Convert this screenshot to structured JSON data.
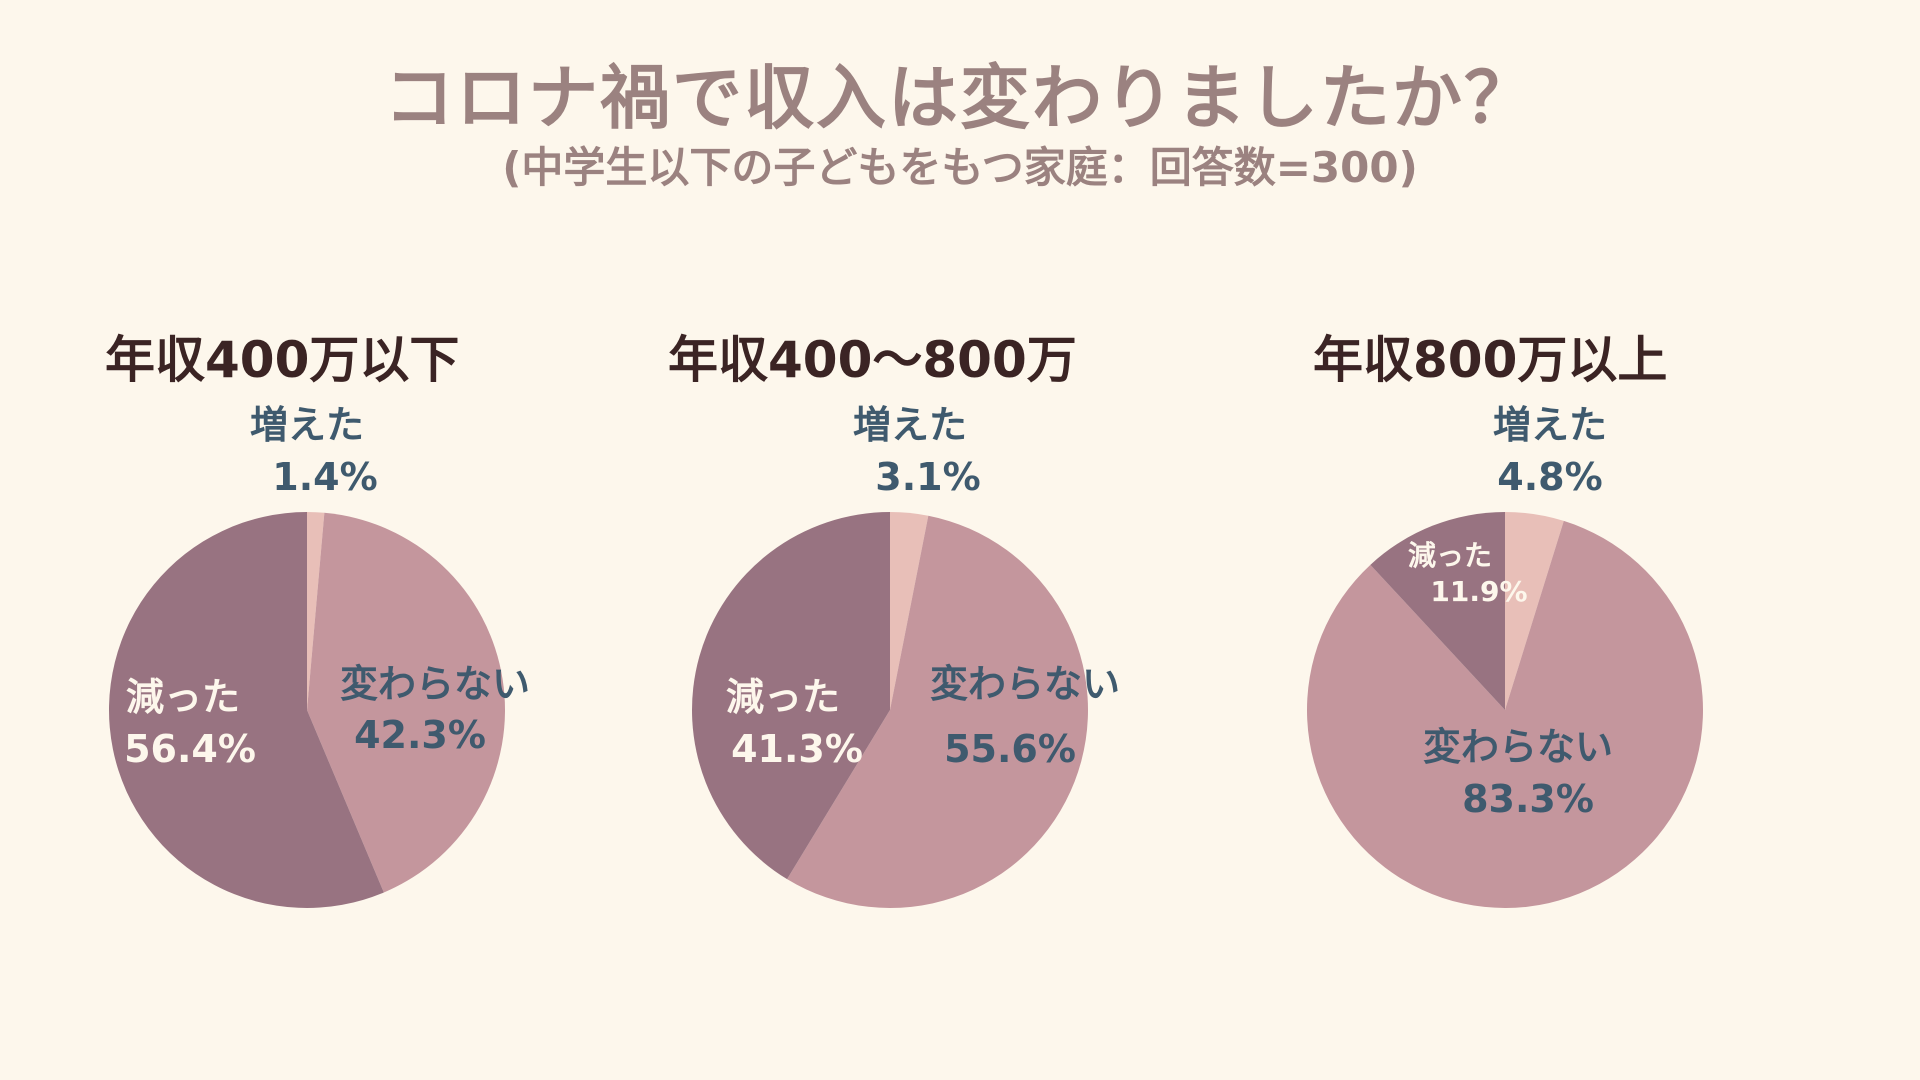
{
  "title": "コロナ禍で収入は変わりましたか？",
  "subtitle": "(中学生以下の子どもをもつ家庭：回答数=300)",
  "colors": {
    "increased": "#e8bfb8",
    "unchanged": "#c4969d",
    "decreased": "#987381",
    "label_dark": "#3f5a6e",
    "label_light": "#fdf7ec"
  },
  "chart_data": [
    {
      "type": "pie",
      "title": "年収400万以下",
      "categories": [
        "増えた",
        "変わらない",
        "減った"
      ],
      "values": [
        1.4,
        42.3,
        56.4
      ],
      "value_labels": [
        "1.4%",
        "42.3%",
        "56.4%"
      ]
    },
    {
      "type": "pie",
      "title": "年収400〜800万",
      "categories": [
        "増えた",
        "変わらない",
        "減った"
      ],
      "values": [
        3.1,
        55.6,
        41.3
      ],
      "value_labels": [
        "3.1%",
        "55.6%",
        "41.3%"
      ]
    },
    {
      "type": "pie",
      "title": "年収800万以上",
      "categories": [
        "増えた",
        "変わらない",
        "減った"
      ],
      "values": [
        4.8,
        83.3,
        11.9
      ],
      "value_labels": [
        "4.8%",
        "83.3%",
        "11.9%"
      ]
    }
  ]
}
